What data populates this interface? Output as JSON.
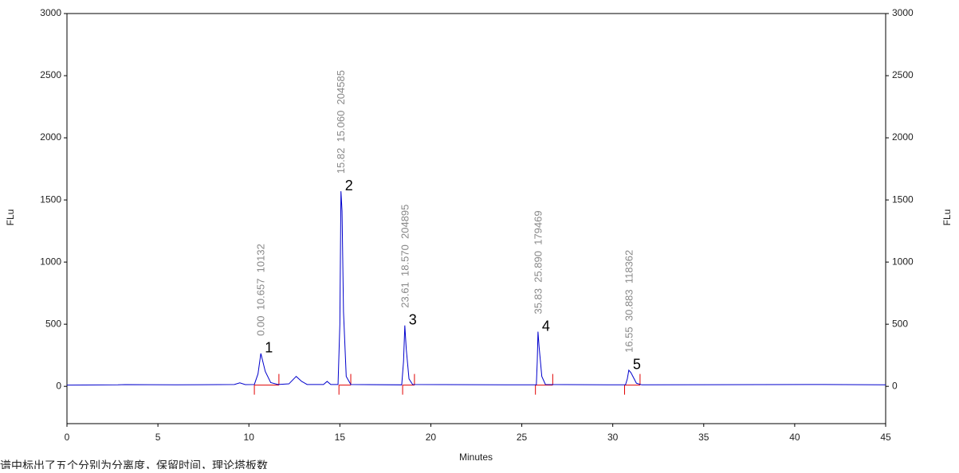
{
  "chart_data": {
    "type": "line",
    "x_label": "Minutes",
    "y_label": "FLu",
    "y2_label": "FLu",
    "xlim": [
      0,
      45
    ],
    "xticks": [
      0,
      5,
      10,
      15,
      20,
      25,
      30,
      35,
      40,
      45
    ],
    "ylim": [
      -300,
      3000
    ],
    "yticks": [
      0,
      500,
      1000,
      1500,
      2000,
      2500,
      3000
    ],
    "y2lim": [
      -300,
      3000
    ],
    "y2ticks": [
      0,
      500,
      1000,
      1500,
      2000,
      2500,
      3000
    ],
    "series": [
      {
        "color": "#0000cc",
        "x": [
          0,
          2.8,
          3.2,
          6,
          9.2,
          9.5,
          9.8,
          10.3,
          10.5,
          10.657,
          10.9,
          11.2,
          11.6,
          12.2,
          12.6,
          12.9,
          13.2,
          14.1,
          14.3,
          14.5,
          14.9,
          15.0,
          15.06,
          15.12,
          15.2,
          15.35,
          15.6,
          18.4,
          18.5,
          18.57,
          18.65,
          18.8,
          19.0,
          25.8,
          25.85,
          25.89,
          25.95,
          26.1,
          26.3,
          30.7,
          30.8,
          30.883,
          31.0,
          31.3,
          31.6,
          41.3,
          41.6,
          45
        ],
        "values": [
          10,
          12,
          14,
          12,
          15,
          28,
          14,
          15,
          100,
          265,
          120,
          30,
          15,
          20,
          80,
          40,
          15,
          15,
          40,
          15,
          15,
          500,
          1570,
          1410,
          600,
          80,
          15,
          12,
          200,
          490,
          300,
          60,
          15,
          12,
          200,
          440,
          320,
          80,
          15,
          12,
          60,
          130,
          110,
          25,
          12,
          15,
          15,
          12
        ]
      }
    ],
    "event_color": "#e00000",
    "peak_starts": [
      10.3,
      14.95,
      18.45,
      25.75,
      30.65
    ],
    "peak_ends": [
      11.65,
      15.6,
      19.1,
      26.7,
      31.5
    ],
    "peaks": [
      {
        "label": "1",
        "time": 10.657,
        "height": 265,
        "annotation": "0.00  10.657  10132"
      },
      {
        "label": "2",
        "time": 15.06,
        "height": 1570,
        "annotation": "15.82  15.060  204585"
      },
      {
        "label": "3",
        "time": 18.57,
        "height": 490,
        "annotation": "23.61  18.570  204895"
      },
      {
        "label": "4",
        "time": 25.89,
        "height": 440,
        "annotation": "35.83  25.890  179469"
      },
      {
        "label": "5",
        "time": 30.883,
        "height": 130,
        "annotation": "16.55  30.883  118362"
      }
    ]
  },
  "caption": "谱中标出了五个分别为分离度，保留时间，理论塔板数"
}
